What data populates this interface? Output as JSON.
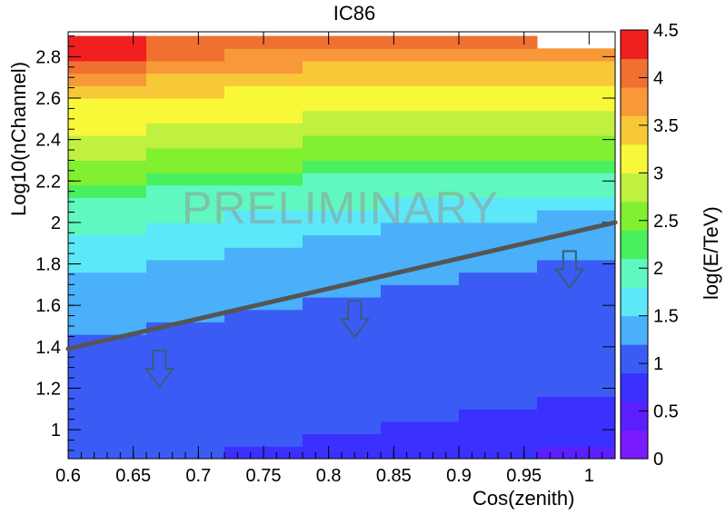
{
  "chart_data": {
    "type": "heatmap",
    "title": "IC86",
    "xlabel": "Cos(zenith)",
    "ylabel": "Log10(nChannel)",
    "zlabel": "log(E/TeV)",
    "xlim": [
      0.6,
      1.02
    ],
    "ylim": [
      0.86,
      2.92
    ],
    "zlim": [
      0,
      4.5
    ],
    "x_ticks": [
      "0.6",
      "0.65",
      "0.7",
      "0.75",
      "0.8",
      "0.85",
      "0.9",
      "0.95",
      "1"
    ],
    "y_ticks": [
      "1",
      "1.2",
      "1.4",
      "1.6",
      "1.8",
      "2",
      "2.2",
      "2.4",
      "2.6",
      "2.8"
    ],
    "z_ticks": [
      "0",
      "0.5",
      "1",
      "1.5",
      "2",
      "2.5",
      "3",
      "3.5",
      "4",
      "4.5"
    ],
    "x_edges": [
      0.6,
      0.66,
      0.72,
      0.78,
      0.84,
      0.9,
      0.96,
      1.02
    ],
    "y_edges": [
      0.86,
      0.92,
      0.98,
      1.04,
      1.1,
      1.16,
      1.22,
      1.28,
      1.34,
      1.4,
      1.46,
      1.52,
      1.58,
      1.64,
      1.7,
      1.76,
      1.82,
      1.88,
      1.94,
      2.0,
      2.06,
      2.12,
      2.18,
      2.24,
      2.3,
      2.36,
      2.42,
      2.48,
      2.54,
      2.6,
      2.66,
      2.72,
      2.78,
      2.84,
      2.9
    ],
    "z_rows_low_to_high": [
      [
        1.0,
        0.9,
        0.7,
        0.7,
        0.7,
        0.7,
        0.5
      ],
      [
        1.0,
        0.9,
        0.9,
        0.7,
        0.7,
        0.7,
        0.7
      ],
      [
        1.0,
        1.0,
        0.9,
        0.9,
        0.7,
        0.7,
        0.7
      ],
      [
        1.0,
        1.0,
        1.0,
        0.9,
        0.9,
        0.7,
        0.7
      ],
      [
        1.0,
        1.0,
        1.0,
        0.9,
        0.9,
        0.9,
        0.7
      ],
      [
        1.0,
        1.0,
        1.0,
        1.0,
        0.9,
        0.9,
        0.9
      ],
      [
        1.15,
        1.0,
        1.0,
        1.0,
        1.0,
        0.9,
        0.9
      ],
      [
        1.15,
        1.15,
        1.0,
        1.0,
        1.0,
        1.0,
        0.9
      ],
      [
        1.15,
        1.15,
        1.15,
        1.0,
        1.0,
        1.0,
        1.0
      ],
      [
        1.15,
        1.15,
        1.15,
        1.15,
        1.0,
        1.0,
        1.0
      ],
      [
        1.35,
        1.15,
        1.15,
        1.15,
        1.15,
        1.0,
        1.0
      ],
      [
        1.35,
        1.35,
        1.15,
        1.15,
        1.15,
        1.15,
        1.0
      ],
      [
        1.35,
        1.35,
        1.35,
        1.15,
        1.15,
        1.15,
        1.15
      ],
      [
        1.35,
        1.35,
        1.35,
        1.35,
        1.15,
        1.15,
        1.15
      ],
      [
        1.35,
        1.35,
        1.35,
        1.35,
        1.35,
        1.15,
        1.15
      ],
      [
        1.6,
        1.35,
        1.35,
        1.35,
        1.35,
        1.35,
        1.15
      ],
      [
        1.6,
        1.6,
        1.35,
        1.35,
        1.35,
        1.35,
        1.35
      ],
      [
        1.6,
        1.6,
        1.6,
        1.35,
        1.35,
        1.35,
        1.35
      ],
      [
        1.8,
        1.6,
        1.6,
        1.6,
        1.35,
        1.35,
        1.35
      ],
      [
        1.8,
        1.8,
        1.6,
        1.6,
        1.6,
        1.6,
        1.35
      ],
      [
        2.0,
        1.8,
        1.8,
        1.8,
        1.6,
        1.6,
        1.6
      ],
      [
        2.2,
        2.0,
        2.0,
        1.8,
        1.8,
        1.8,
        1.8
      ],
      [
        2.4,
        2.2,
        2.2,
        2.0,
        2.0,
        2.0,
        2.0
      ],
      [
        2.6,
        2.4,
        2.4,
        2.2,
        2.2,
        2.2,
        2.2
      ],
      [
        2.8,
        2.6,
        2.6,
        2.4,
        2.4,
        2.4,
        2.4
      ],
      [
        2.9,
        2.8,
        2.8,
        2.6,
        2.6,
        2.6,
        2.6
      ],
      [
        3.0,
        2.9,
        2.9,
        2.8,
        2.8,
        2.8,
        2.8
      ],
      [
        3.1,
        3.0,
        3.0,
        2.9,
        2.9,
        2.9,
        2.9
      ],
      [
        3.2,
        3.1,
        3.1,
        3.0,
        3.0,
        3.0,
        3.0
      ],
      [
        3.4,
        3.3,
        3.2,
        3.1,
        3.1,
        3.1,
        3.1
      ],
      [
        3.6,
        3.5,
        3.4,
        3.3,
        3.3,
        3.3,
        3.3
      ],
      [
        3.9,
        3.7,
        3.6,
        3.5,
        3.5,
        3.5,
        3.5
      ],
      [
        4.2,
        3.9,
        3.8,
        3.7,
        3.7,
        3.7,
        3.7
      ],
      [
        4.4,
        4.1,
        4.0,
        4.0,
        4.0,
        3.9,
        null
      ]
    ],
    "cut_line": {
      "x": [
        0.6,
        1.02
      ],
      "y": [
        1.39,
        2.0
      ]
    },
    "arrows": [
      {
        "x": 0.67,
        "y": 1.25
      },
      {
        "x": 0.82,
        "y": 1.49
      },
      {
        "x": 0.985,
        "y": 1.73
      }
    ],
    "annotation": "PRELIMINARY"
  }
}
